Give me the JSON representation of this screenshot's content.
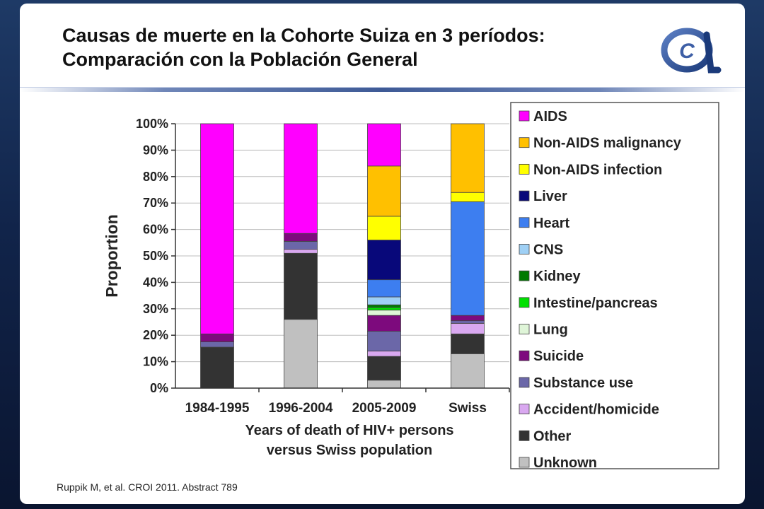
{
  "title_line1": "Causas de muerte en la Cohorte Suiza en 3 períodos:",
  "title_line2": "Comparación con la Población General",
  "source": "Ruppik M, et al. CROI 2011. Abstract 789",
  "logo_text": "C",
  "chart_data": {
    "type": "bar",
    "stacked": true,
    "categories": [
      "1984-1995",
      "1996-2004",
      "2005-2009",
      "Swiss"
    ],
    "xlabel": [
      "Years of death of HIV+ persons",
      "versus Swiss population"
    ],
    "ylabel": "Proportion",
    "ylim": [
      0,
      100
    ],
    "yticks": [
      "0%",
      "10%",
      "20%",
      "30%",
      "40%",
      "50%",
      "60%",
      "70%",
      "80%",
      "90%",
      "100%"
    ],
    "grid": true,
    "legend_position": "right",
    "series": [
      {
        "name": "Unknown",
        "color": "#c0c0c0",
        "values": [
          0,
          26,
          3,
          13
        ]
      },
      {
        "name": "Other",
        "color": "#333333",
        "values": [
          15.5,
          25,
          9,
          7.5
        ]
      },
      {
        "name": "Accident/homicide",
        "color": "#d9a8f0",
        "values": [
          0,
          1.5,
          2,
          4
        ]
      },
      {
        "name": "Substance use",
        "color": "#6b67a8",
        "values": [
          2,
          3,
          7.5,
          1
        ]
      },
      {
        "name": "Suicide",
        "color": "#7d0a7d",
        "values": [
          3,
          3,
          6,
          2
        ]
      },
      {
        "name": "Lung",
        "color": "#dff5d8",
        "values": [
          0,
          0,
          2,
          0
        ]
      },
      {
        "name": "Intestine/pancreas",
        "color": "#00e000",
        "values": [
          0,
          0,
          1,
          0
        ]
      },
      {
        "name": "Kidney",
        "color": "#007a00",
        "values": [
          0,
          0,
          1,
          0
        ]
      },
      {
        "name": "CNS",
        "color": "#9fd0f5",
        "values": [
          0,
          0,
          3,
          0
        ]
      },
      {
        "name": "Heart",
        "color": "#3d7ef0",
        "values": [
          0,
          0,
          6.5,
          43
        ]
      },
      {
        "name": "Liver",
        "color": "#08087a",
        "values": [
          0,
          0,
          15,
          0
        ]
      },
      {
        "name": "Non-AIDS infection",
        "color": "#ffff00",
        "values": [
          0,
          0,
          9,
          3.5
        ]
      },
      {
        "name": "Non-AIDS malignancy",
        "color": "#ffc000",
        "values": [
          0,
          0,
          19,
          26
        ]
      },
      {
        "name": "AIDS",
        "color": "#ff00ff",
        "values": [
          79.5,
          41.5,
          16,
          0
        ]
      }
    ]
  }
}
